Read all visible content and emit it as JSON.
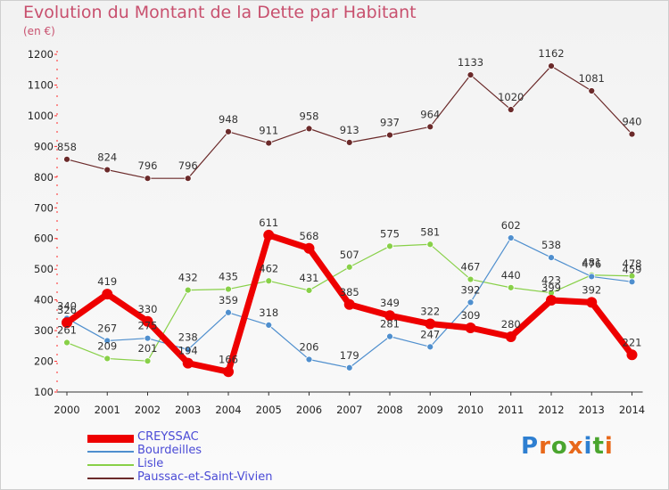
{
  "header": {
    "title": "Evolution du Montant de la Dette par Habitant",
    "subtitle": "(en €)"
  },
  "logo": {
    "letters": [
      "P",
      "r",
      "o",
      "x",
      "i",
      "t",
      "i"
    ],
    "colors": [
      "#2e7fd1",
      "#e8681a",
      "#4aa52e",
      "#e8681a",
      "#2e7fd1",
      "#4aa52e",
      "#e8681a"
    ]
  },
  "chart_data": {
    "type": "line",
    "title": "Evolution du Montant de la Dette par Habitant",
    "subtitle": "(en €)",
    "xlabel": "",
    "ylabel": "",
    "x": [
      "2000",
      "2001",
      "2002",
      "2003",
      "2004",
      "2005",
      "2006",
      "2007",
      "2008",
      "2009",
      "2010",
      "2011",
      "2012",
      "2013",
      "2014"
    ],
    "ylim": [
      100,
      1200
    ],
    "yticks": [
      100,
      200,
      300,
      400,
      500,
      600,
      700,
      800,
      900,
      1000,
      1100,
      1200
    ],
    "grid": false,
    "legend_position": "bottom-left",
    "series": [
      {
        "name": "CREYSSAC",
        "color": "#ee0000",
        "values": [
          326,
          419,
          330,
          194,
          166,
          611,
          568,
          385,
          349,
          322,
          309,
          280,
          399,
          392,
          221
        ],
        "labels": [
          "326",
          "419",
          "330",
          "194",
          "166",
          "611",
          "568",
          "385",
          "349",
          "322",
          "309",
          "280",
          "399",
          "392",
          "221"
        ]
      },
      {
        "name": "Bourdeilles",
        "color": "#4f8fce",
        "values": [
          340,
          267,
          275,
          238,
          359,
          318,
          206,
          179,
          281,
          247,
          392,
          602,
          538,
          476,
          459
        ],
        "labels": [
          "340",
          "267",
          "275",
          "238",
          "359",
          "318",
          "206",
          "179",
          "281",
          "247",
          "392",
          "602",
          "538",
          "476",
          "459"
        ]
      },
      {
        "name": "Lisle",
        "color": "#88d048",
        "values": [
          261,
          209,
          201,
          432,
          435,
          462,
          431,
          507,
          575,
          581,
          467,
          440,
          423,
          481,
          478
        ],
        "labels": [
          "261",
          "209",
          "201",
          "432",
          "435",
          "462",
          "431",
          "507",
          "575",
          "581",
          "467",
          "440",
          "423",
          "481",
          "478"
        ]
      },
      {
        "name": "Paussac-et-Saint-Vivien",
        "color": "#6b2a2a",
        "values": [
          858,
          824,
          796,
          796,
          948,
          911,
          958,
          913,
          937,
          964,
          1133,
          1020,
          1162,
          1081,
          940
        ],
        "labels": [
          "858",
          "824",
          "796",
          "796",
          "948",
          "911",
          "958",
          "913",
          "937",
          "964",
          "1133",
          "1020",
          "1162",
          "1081",
          "940"
        ]
      }
    ]
  }
}
